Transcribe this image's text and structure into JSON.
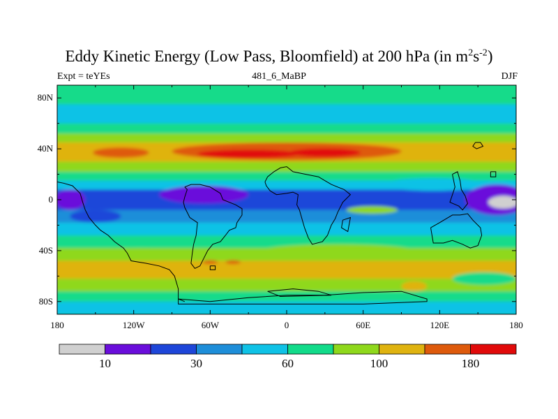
{
  "title": {
    "main": "Eddy Kinetic Energy (Low Pass, Bloomfield) at 200 hPa (in m",
    "sup1": "2",
    "s": "s",
    "sup2": "-2",
    "close": ")"
  },
  "subtitle": {
    "left": "Expt = teYEs",
    "center": "481_6_MaBP",
    "right": "DJF"
  },
  "chart_data": {
    "type": "heatmap",
    "title": "Eddy Kinetic Energy (Low Pass, Bloomfield) at 200 hPa (in m2s-2)",
    "x_axis": {
      "range": [
        -180,
        180
      ],
      "ticks": [
        -180,
        -120,
        -60,
        0,
        60,
        120,
        180
      ],
      "tick_labels": [
        "180",
        "120W",
        "60W",
        "0",
        "60E",
        "120E",
        "180"
      ]
    },
    "y_axis": {
      "range": [
        -90,
        90
      ],
      "ticks": [
        80,
        40,
        0,
        -40,
        -80
      ],
      "tick_labels": [
        "80N",
        "40N",
        "0",
        "40S",
        "80S"
      ]
    },
    "colorbar": {
      "colors": [
        "#d0d0d0",
        "#6a0edb",
        "#1e46d9",
        "#1e8ed9",
        "#0fc2e6",
        "#12db8a",
        "#8fd81c",
        "#dfb310",
        "#de5a0c",
        "#e10a0a"
      ],
      "labels": [
        {
          "text": "10",
          "boundary": 1
        },
        {
          "text": "30",
          "boundary": 3
        },
        {
          "text": "60",
          "boundary": 5
        },
        {
          "text": "100",
          "boundary": 7
        },
        {
          "text": "180",
          "boundary": 9
        }
      ]
    },
    "bands": [
      {
        "lat": [
          75,
          90
        ],
        "level": 5
      },
      {
        "lat": [
          60,
          75
        ],
        "level": 4
      },
      {
        "lat": [
          52,
          60
        ],
        "level": 5
      },
      {
        "lat": [
          45,
          52
        ],
        "level": 6
      },
      {
        "lat": [
          30,
          45
        ],
        "level": 7
      },
      {
        "lat": [
          22,
          30
        ],
        "level": 6
      },
      {
        "lat": [
          15,
          22
        ],
        "level": 5
      },
      {
        "lat": [
          8,
          15
        ],
        "level": 4
      },
      {
        "lat": [
          -8,
          8
        ],
        "level": 2
      },
      {
        "lat": [
          -18,
          -8
        ],
        "level": 3
      },
      {
        "lat": [
          -28,
          -18
        ],
        "level": 4
      },
      {
        "lat": [
          -38,
          -28
        ],
        "level": 5
      },
      {
        "lat": [
          -48,
          -38
        ],
        "level": 6
      },
      {
        "lat": [
          -62,
          -48
        ],
        "level": 7
      },
      {
        "lat": [
          -72,
          -62
        ],
        "level": 6
      },
      {
        "lat": [
          -80,
          -72
        ],
        "level": 5
      },
      {
        "lat": [
          -90,
          -80
        ],
        "level": 4
      }
    ],
    "blobs": [
      {
        "lon": 0,
        "lat": 38,
        "rlon": 90,
        "rlat": 7,
        "level": 8
      },
      {
        "lon": -130,
        "lat": 37,
        "rlon": 22,
        "rlat": 4,
        "level": 8
      },
      {
        "lon": -30,
        "lat": 36,
        "rlon": 40,
        "rlat": 3.5,
        "level": 9
      },
      {
        "lon": 30,
        "lat": 37,
        "rlon": 28,
        "rlat": 3.5,
        "level": 9
      },
      {
        "lon": -65,
        "lat": 4,
        "rlon": 35,
        "rlat": 7,
        "level": 1
      },
      {
        "lon": -170,
        "lat": 0,
        "rlon": 12,
        "rlat": 8,
        "level": 1
      },
      {
        "lon": 165,
        "lat": 0,
        "rlon": 25,
        "rlat": 12,
        "level": 1
      },
      {
        "lon": 170,
        "lat": -2,
        "rlon": 12,
        "rlat": 5,
        "level": 0
      },
      {
        "lon": 67,
        "lat": -8,
        "rlon": 20,
        "rlat": 3,
        "level": 6
      },
      {
        "lon": -150,
        "lat": -13,
        "rlon": 20,
        "rlat": 5,
        "level": 2
      },
      {
        "lon": 115,
        "lat": 12,
        "rlon": 40,
        "rlat": 5,
        "level": 4
      },
      {
        "lon": -115,
        "lat": -42,
        "rlon": 35,
        "rlat": 4,
        "level": 6
      },
      {
        "lon": 40,
        "lat": -40,
        "rlon": 60,
        "rlat": 5,
        "level": 6
      },
      {
        "lon": -60,
        "lat": -49,
        "rlon": 6,
        "rlat": 1.5,
        "level": 8
      },
      {
        "lon": -42,
        "lat": -49,
        "rlon": 6,
        "rlat": 1.5,
        "level": 8
      },
      {
        "lon": 155,
        "lat": -62,
        "rlon": 25,
        "rlat": 5,
        "level": 5
      },
      {
        "lon": 100,
        "lat": -68,
        "rlon": 10,
        "rlat": 4,
        "level": 7
      }
    ],
    "coastlines": [
      {
        "name": "south-america",
        "points": [
          [
            -80,
            10
          ],
          [
            -75,
            12
          ],
          [
            -68,
            12
          ],
          [
            -60,
            10
          ],
          [
            -52,
            5
          ],
          [
            -50,
            0
          ],
          [
            -40,
            -4
          ],
          [
            -35,
            -7
          ],
          [
            -35,
            -12
          ],
          [
            -39,
            -18
          ],
          [
            -40,
            -22
          ],
          [
            -45,
            -24
          ],
          [
            -48,
            -28
          ],
          [
            -52,
            -33
          ],
          [
            -58,
            -35
          ],
          [
            -62,
            -40
          ],
          [
            -65,
            -46
          ],
          [
            -68,
            -52
          ],
          [
            -72,
            -54
          ],
          [
            -75,
            -50
          ],
          [
            -74,
            -42
          ],
          [
            -73,
            -35
          ],
          [
            -71,
            -28
          ],
          [
            -70,
            -18
          ],
          [
            -76,
            -14
          ],
          [
            -80,
            -6
          ],
          [
            -81,
            -2
          ],
          [
            -80,
            2
          ],
          [
            -78,
            8
          ],
          [
            -80,
            10
          ]
        ]
      },
      {
        "name": "central-america",
        "points": [
          [
            -180,
            14
          ],
          [
            -175,
            13
          ],
          [
            -168,
            11
          ],
          [
            -162,
            5
          ],
          [
            -160,
            -2
          ],
          [
            -158,
            -8
          ],
          [
            -155,
            -14
          ],
          [
            -150,
            -20
          ],
          [
            -146,
            -24
          ],
          [
            -140,
            -28
          ],
          [
            -135,
            -33
          ],
          [
            -128,
            -38
          ],
          [
            -125,
            -42
          ],
          [
            -122,
            -48
          ],
          [
            -110,
            -50
          ],
          [
            -100,
            -52
          ],
          [
            -92,
            -55
          ],
          [
            -88,
            -60
          ],
          [
            -85,
            -70
          ],
          [
            -85,
            -78
          ],
          [
            -80,
            -80
          ]
        ]
      },
      {
        "name": "africa",
        "points": [
          [
            -17,
            14
          ],
          [
            -15,
            18
          ],
          [
            -10,
            22
          ],
          [
            -5,
            25
          ],
          [
            0,
            26
          ],
          [
            5,
            22
          ],
          [
            15,
            20
          ],
          [
            25,
            18
          ],
          [
            30,
            15
          ],
          [
            35,
            12
          ],
          [
            40,
            10
          ],
          [
            45,
            8
          ],
          [
            50,
            4
          ],
          [
            44,
            -2
          ],
          [
            40,
            -10
          ],
          [
            38,
            -15
          ],
          [
            35,
            -20
          ],
          [
            32,
            -28
          ],
          [
            28,
            -33
          ],
          [
            20,
            -35
          ],
          [
            17,
            -30
          ],
          [
            14,
            -22
          ],
          [
            12,
            -15
          ],
          [
            10,
            -8
          ],
          [
            8,
            -4
          ],
          [
            9,
            4
          ],
          [
            5,
            6
          ],
          [
            0,
            5
          ],
          [
            -8,
            4
          ],
          [
            -13,
            7
          ],
          [
            -16,
            11
          ],
          [
            -17,
            14
          ]
        ]
      },
      {
        "name": "australia",
        "points": [
          [
            113,
            -22
          ],
          [
            115,
            -34
          ],
          [
            123,
            -34
          ],
          [
            130,
            -32
          ],
          [
            138,
            -35
          ],
          [
            144,
            -38
          ],
          [
            150,
            -36
          ],
          [
            153,
            -28
          ],
          [
            152,
            -22
          ],
          [
            146,
            -16
          ],
          [
            142,
            -11
          ],
          [
            136,
            -12
          ],
          [
            130,
            -12
          ],
          [
            125,
            -15
          ],
          [
            120,
            -18
          ],
          [
            113,
            -22
          ]
        ]
      },
      {
        "name": "indonesia",
        "points": [
          [
            130,
            20
          ],
          [
            132,
            10
          ],
          [
            128,
            -2
          ],
          [
            135,
            -5
          ],
          [
            138,
            -8
          ],
          [
            142,
            -3
          ],
          [
            140,
            3
          ],
          [
            137,
            8
          ],
          [
            136,
            15
          ],
          [
            134,
            22
          ],
          [
            130,
            20
          ]
        ]
      },
      {
        "name": "antarctica",
        "points": [
          [
            -85,
            -78
          ],
          [
            -60,
            -80
          ],
          [
            -30,
            -77
          ],
          [
            0,
            -75
          ],
          [
            30,
            -75
          ],
          [
            60,
            -73
          ],
          [
            90,
            -72
          ],
          [
            110,
            -78
          ],
          [
            110,
            -80
          ],
          [
            60,
            -82
          ],
          [
            0,
            -82
          ],
          [
            -60,
            -82
          ],
          [
            -85,
            -82
          ],
          [
            -85,
            -78
          ]
        ]
      },
      {
        "name": "japan",
        "points": [
          [
            148,
            45
          ],
          [
            152,
            45
          ],
          [
            154,
            42
          ],
          [
            149,
            40
          ],
          [
            146,
            42
          ],
          [
            148,
            45
          ]
        ]
      },
      {
        "name": "pacific-island",
        "points": [
          [
            160,
            22
          ],
          [
            164,
            22
          ],
          [
            164,
            18
          ],
          [
            160,
            18
          ],
          [
            160,
            22
          ]
        ]
      },
      {
        "name": "madagascar",
        "points": [
          [
            44,
            -16
          ],
          [
            50,
            -14
          ],
          [
            48,
            -25
          ],
          [
            43,
            -22
          ],
          [
            44,
            -16
          ]
        ]
      },
      {
        "name": "antarctic-island",
        "points": [
          [
            -15,
            -72
          ],
          [
            5,
            -70
          ],
          [
            25,
            -72
          ],
          [
            35,
            -75
          ],
          [
            -5,
            -76
          ],
          [
            -15,
            -72
          ]
        ]
      },
      {
        "name": "falkland",
        "points": [
          [
            -60,
            -52
          ],
          [
            -56,
            -52
          ],
          [
            -56,
            -55
          ],
          [
            -60,
            -55
          ],
          [
            -60,
            -52
          ]
        ]
      }
    ]
  }
}
